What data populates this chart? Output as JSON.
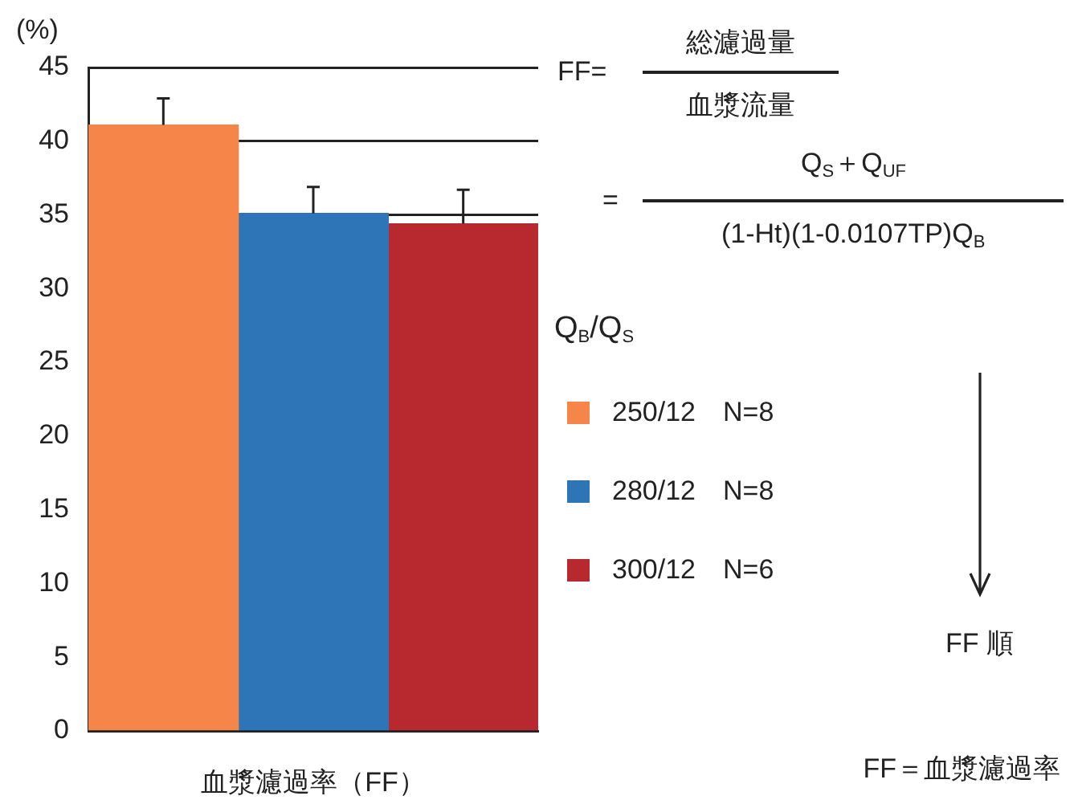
{
  "chart_data": {
    "type": "bar",
    "ylabel": "(%)",
    "legend_title": "Q$_{B}$/Q$_{S}$",
    "legend": "right",
    "grid": "y",
    "xlabel": "血漿濾過率（FF）",
    "categories": [
      null,
      null,
      null
    ],
    "series": [
      {
        "name": "250/12　N=8",
        "color": "#f58549",
        "values": [
          41.1,
          null,
          null
        ],
        "errors": [
          [
            41.1,
            42.9
          ],
          null,
          null
        ]
      },
      {
        "name": "280/12　N=8",
        "color": "#2e75b8",
        "values": [
          null,
          35.1,
          null
        ],
        "errors": [
          null,
          [
            35.1,
            36.9
          ],
          null
        ]
      },
      {
        "name": "300/12　N=6",
        "color": "#b7282f",
        "values": [
          null,
          null,
          34.4
        ],
        "errors": [
          null,
          null,
          [
            34.4,
            36.7
          ]
        ]
      }
    ],
    "ylim": [
      0,
      45
    ],
    "yticks": [
      0,
      5,
      10,
      15,
      20,
      25,
      30,
      35,
      40,
      45
    ],
    "annotations": [
      "FF=",
      "総濾過量",
      "血漿流量",
      "=",
      "Q$_{S}$＋Q$_{UF}$",
      "(1-Ht)(1-0.0107TP)Q$_{B}$",
      "FF 順",
      "FF＝血漿濾過率"
    ]
  }
}
